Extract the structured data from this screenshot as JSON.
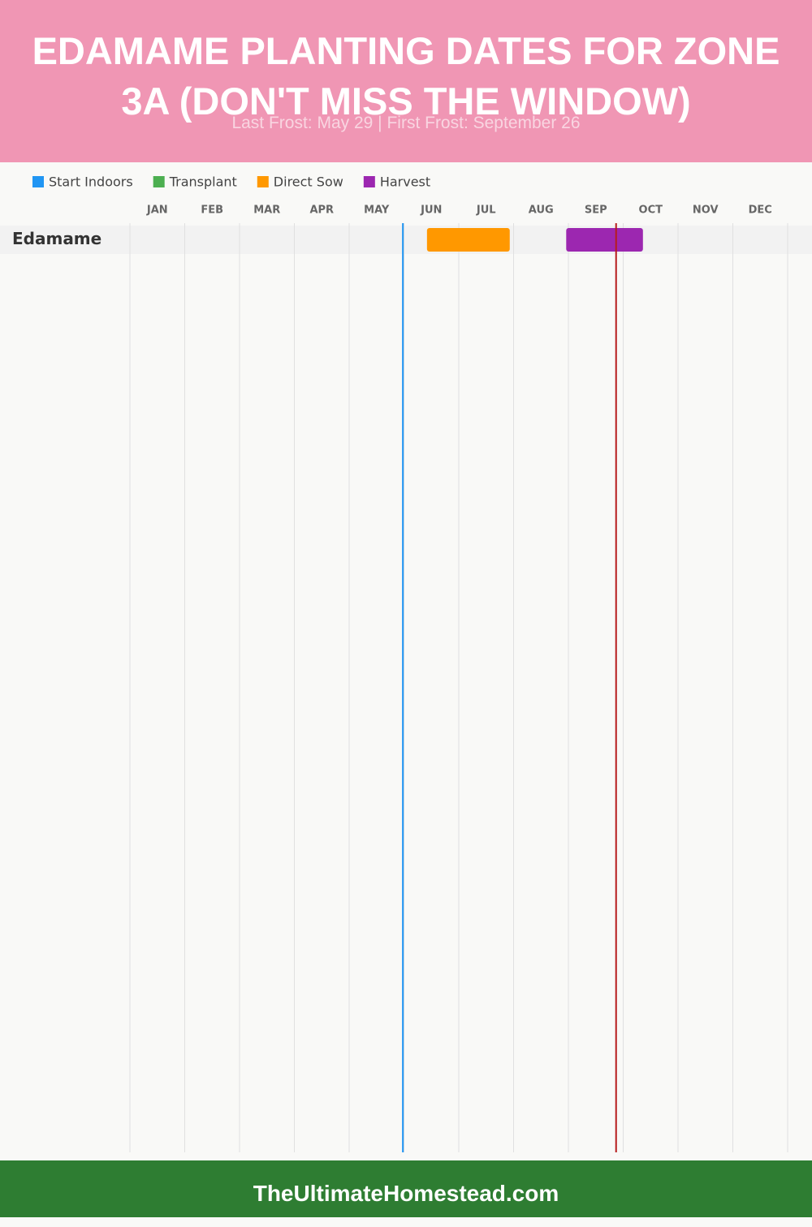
{
  "chart_data": {
    "type": "gantt",
    "title": "EDAMAME PLANTING DATES FOR ZONE 3A (DON'T MISS THE WINDOW)",
    "subtitle": "Last Frost: May 29 | First Frost: September 26",
    "footer": "TheUltimateHomestead.com",
    "categories": [
      "Edamame"
    ],
    "months": [
      "JAN",
      "FEB",
      "MAR",
      "APR",
      "MAY",
      "JUN",
      "JUL",
      "AUG",
      "SEP",
      "OCT",
      "NOV",
      "DEC"
    ],
    "xlim": [
      0,
      12
    ],
    "xticks": [
      0,
      1,
      2,
      3,
      4,
      5,
      6,
      7,
      8,
      9,
      10,
      11,
      12
    ],
    "grid": true,
    "series": [
      {
        "name": "Start Indoors",
        "color": "#2196f3",
        "values": [
          null
        ]
      },
      {
        "name": "Transplant",
        "color": "#4caf50",
        "values": [
          null
        ]
      },
      {
        "name": "Direct Sow",
        "color": "#ff9800",
        "values": [
          [
            5.42,
            6.93
          ]
        ]
      },
      {
        "name": "Harvest",
        "color": "#9c27b0",
        "values": [
          [
            7.96,
            9.36
          ]
        ]
      }
    ],
    "frost_lines": [
      {
        "value": 4.98,
        "color": "#2196f3"
      },
      {
        "value": 8.87,
        "color": "#b71c1c"
      }
    ]
  }
}
